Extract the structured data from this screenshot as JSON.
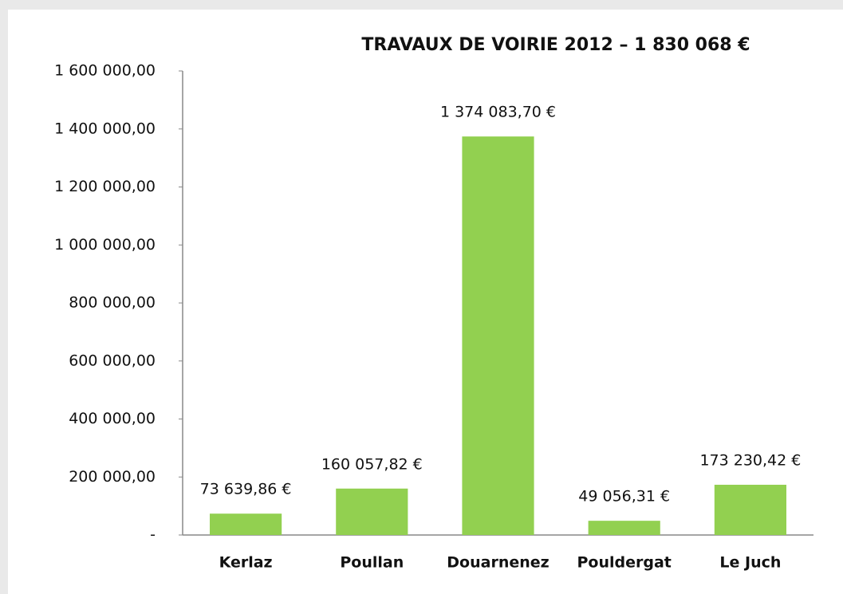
{
  "chart_data": {
    "type": "bar",
    "title": "TRAVAUX DE VOIRIE 2012 – 1 830 068 €",
    "categories": [
      "Kerlaz",
      "Poullan",
      "Douarnenez",
      "Pouldergat",
      "Le Juch"
    ],
    "values": [
      73639.86,
      160057.82,
      1374083.7,
      49056.31,
      173230.42
    ],
    "value_labels": [
      "73 639,86 €",
      "160 057,82 €",
      "1 374 083,70 €",
      "49 056,31 €",
      "173 230,42 €"
    ],
    "color": "#92d050",
    "ylim": [
      0,
      1600000
    ],
    "yticks": [
      {
        "value": 0,
        "label": "-"
      },
      {
        "value": 200000,
        "label": "200 000,00"
      },
      {
        "value": 400000,
        "label": "400 000,00"
      },
      {
        "value": 600000,
        "label": "600 000,00"
      },
      {
        "value": 800000,
        "label": "800 000,00"
      },
      {
        "value": 1000000,
        "label": "1 000 000,00"
      },
      {
        "value": 1200000,
        "label": "1 200 000,00"
      },
      {
        "value": 1400000,
        "label": "1 400 000,00"
      },
      {
        "value": 1600000,
        "label": "1 600 000,00"
      }
    ],
    "grid": false
  }
}
